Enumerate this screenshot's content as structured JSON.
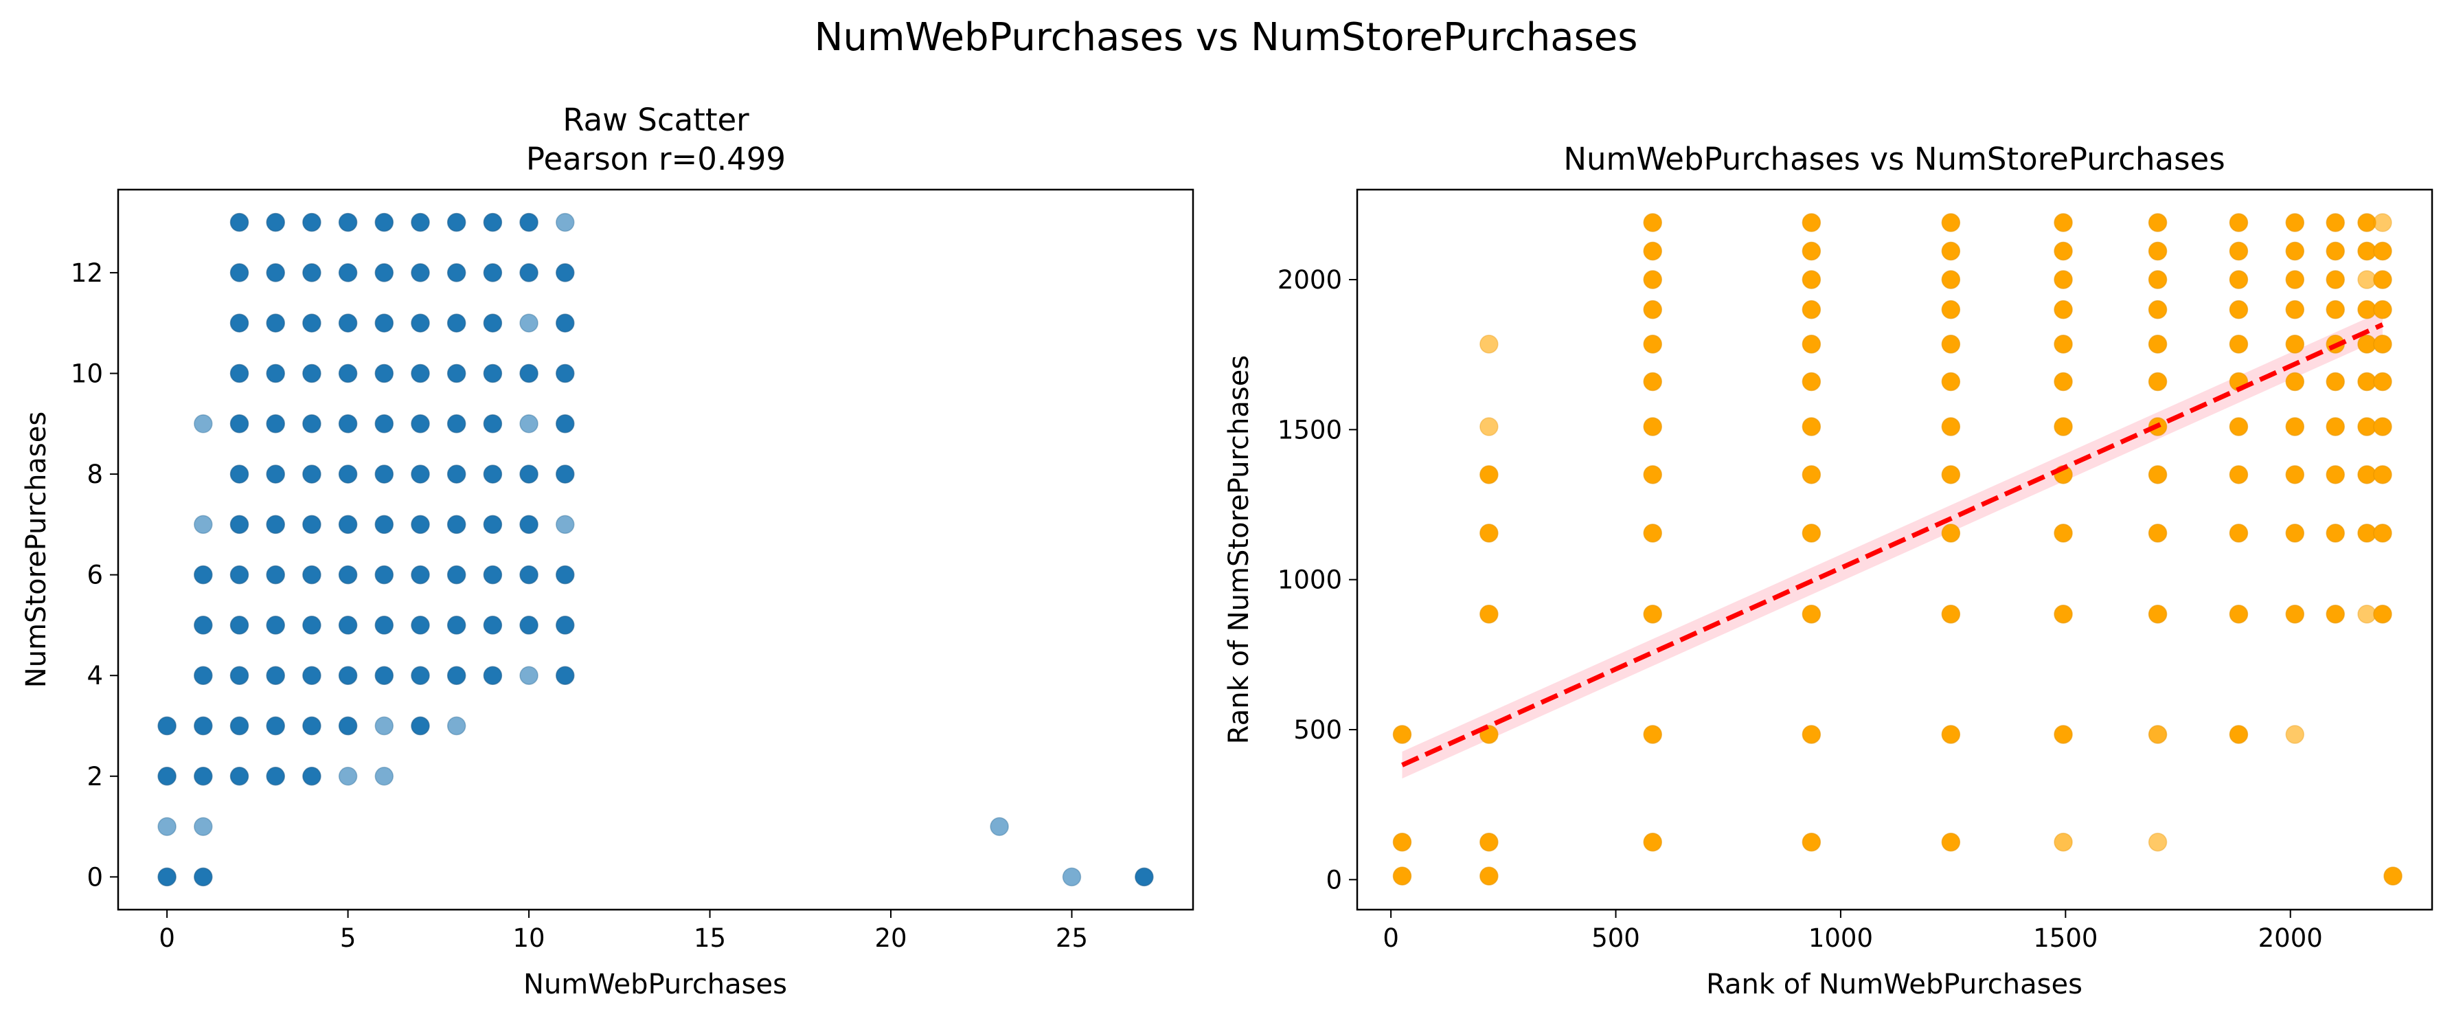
{
  "figure": {
    "suptitle": "NumWebPurchases vs NumStorePurchases"
  },
  "chart_data": [
    {
      "type": "scatter",
      "title": "Raw Scatter",
      "subtitle": "Pearson r=0.499",
      "xlabel": "NumWebPurchases",
      "ylabel": "NumStorePurchases",
      "xlim": [
        -1.35,
        28.35
      ],
      "ylim": [
        -0.65,
        13.65
      ],
      "xticks": [
        0,
        5,
        10,
        15,
        20,
        25
      ],
      "yticks": [
        0,
        2,
        4,
        6,
        8,
        10,
        12
      ],
      "grid": false,
      "marker_color": "#1f77b4",
      "points": [
        {
          "x": 0,
          "y": 0
        },
        {
          "x": 0,
          "y": 1,
          "alpha": 0.6
        },
        {
          "x": 0,
          "y": 2
        },
        {
          "x": 0,
          "y": 3
        },
        {
          "x": 1,
          "y": 0
        },
        {
          "x": 1,
          "y": 1,
          "alpha": 0.6
        },
        {
          "x": 1,
          "y": 2
        },
        {
          "x": 1,
          "y": 3
        },
        {
          "x": 1,
          "y": 4
        },
        {
          "x": 1,
          "y": 5
        },
        {
          "x": 1,
          "y": 6
        },
        {
          "x": 1,
          "y": 7,
          "alpha": 0.6
        },
        {
          "x": 1,
          "y": 9,
          "alpha": 0.6
        },
        {
          "x": 2,
          "y": 2
        },
        {
          "x": 2,
          "y": 3
        },
        {
          "x": 2,
          "y": 4
        },
        {
          "x": 2,
          "y": 5
        },
        {
          "x": 2,
          "y": 6
        },
        {
          "x": 2,
          "y": 7
        },
        {
          "x": 2,
          "y": 8
        },
        {
          "x": 2,
          "y": 9
        },
        {
          "x": 2,
          "y": 10
        },
        {
          "x": 2,
          "y": 11
        },
        {
          "x": 2,
          "y": 12
        },
        {
          "x": 2,
          "y": 13
        },
        {
          "x": 3,
          "y": 2
        },
        {
          "x": 3,
          "y": 3
        },
        {
          "x": 3,
          "y": 4
        },
        {
          "x": 3,
          "y": 5
        },
        {
          "x": 3,
          "y": 6
        },
        {
          "x": 3,
          "y": 7
        },
        {
          "x": 3,
          "y": 8
        },
        {
          "x": 3,
          "y": 9
        },
        {
          "x": 3,
          "y": 10
        },
        {
          "x": 3,
          "y": 11
        },
        {
          "x": 3,
          "y": 12
        },
        {
          "x": 3,
          "y": 13
        },
        {
          "x": 4,
          "y": 2
        },
        {
          "x": 4,
          "y": 3
        },
        {
          "x": 4,
          "y": 4
        },
        {
          "x": 4,
          "y": 5
        },
        {
          "x": 4,
          "y": 6
        },
        {
          "x": 4,
          "y": 7
        },
        {
          "x": 4,
          "y": 8
        },
        {
          "x": 4,
          "y": 9
        },
        {
          "x": 4,
          "y": 10
        },
        {
          "x": 4,
          "y": 11
        },
        {
          "x": 4,
          "y": 12
        },
        {
          "x": 4,
          "y": 13
        },
        {
          "x": 5,
          "y": 2,
          "alpha": 0.6
        },
        {
          "x": 5,
          "y": 3
        },
        {
          "x": 5,
          "y": 4
        },
        {
          "x": 5,
          "y": 5
        },
        {
          "x": 5,
          "y": 6
        },
        {
          "x": 5,
          "y": 7
        },
        {
          "x": 5,
          "y": 8
        },
        {
          "x": 5,
          "y": 9
        },
        {
          "x": 5,
          "y": 10
        },
        {
          "x": 5,
          "y": 11
        },
        {
          "x": 5,
          "y": 12
        },
        {
          "x": 5,
          "y": 13
        },
        {
          "x": 6,
          "y": 2,
          "alpha": 0.6
        },
        {
          "x": 6,
          "y": 3,
          "alpha": 0.6
        },
        {
          "x": 6,
          "y": 4
        },
        {
          "x": 6,
          "y": 5
        },
        {
          "x": 6,
          "y": 6
        },
        {
          "x": 6,
          "y": 7
        },
        {
          "x": 6,
          "y": 8
        },
        {
          "x": 6,
          "y": 9
        },
        {
          "x": 6,
          "y": 10
        },
        {
          "x": 6,
          "y": 11
        },
        {
          "x": 6,
          "y": 12
        },
        {
          "x": 6,
          "y": 13
        },
        {
          "x": 7,
          "y": 3
        },
        {
          "x": 7,
          "y": 4
        },
        {
          "x": 7,
          "y": 5
        },
        {
          "x": 7,
          "y": 6
        },
        {
          "x": 7,
          "y": 7
        },
        {
          "x": 7,
          "y": 8
        },
        {
          "x": 7,
          "y": 9
        },
        {
          "x": 7,
          "y": 10
        },
        {
          "x": 7,
          "y": 11
        },
        {
          "x": 7,
          "y": 12
        },
        {
          "x": 7,
          "y": 13
        },
        {
          "x": 8,
          "y": 3,
          "alpha": 0.6
        },
        {
          "x": 8,
          "y": 4
        },
        {
          "x": 8,
          "y": 5
        },
        {
          "x": 8,
          "y": 6
        },
        {
          "x": 8,
          "y": 7
        },
        {
          "x": 8,
          "y": 8
        },
        {
          "x": 8,
          "y": 9
        },
        {
          "x": 8,
          "y": 10
        },
        {
          "x": 8,
          "y": 11
        },
        {
          "x": 8,
          "y": 12
        },
        {
          "x": 8,
          "y": 13
        },
        {
          "x": 9,
          "y": 4
        },
        {
          "x": 9,
          "y": 5
        },
        {
          "x": 9,
          "y": 6
        },
        {
          "x": 9,
          "y": 7
        },
        {
          "x": 9,
          "y": 8
        },
        {
          "x": 9,
          "y": 9
        },
        {
          "x": 9,
          "y": 10
        },
        {
          "x": 9,
          "y": 11
        },
        {
          "x": 9,
          "y": 12
        },
        {
          "x": 9,
          "y": 13
        },
        {
          "x": 10,
          "y": 4,
          "alpha": 0.6
        },
        {
          "x": 10,
          "y": 5
        },
        {
          "x": 10,
          "y": 6
        },
        {
          "x": 10,
          "y": 7
        },
        {
          "x": 10,
          "y": 8
        },
        {
          "x": 10,
          "y": 9,
          "alpha": 0.6
        },
        {
          "x": 10,
          "y": 10
        },
        {
          "x": 10,
          "y": 11,
          "alpha": 0.6
        },
        {
          "x": 10,
          "y": 12
        },
        {
          "x": 10,
          "y": 13
        },
        {
          "x": 11,
          "y": 4
        },
        {
          "x": 11,
          "y": 5
        },
        {
          "x": 11,
          "y": 6
        },
        {
          "x": 11,
          "y": 7,
          "alpha": 0.6
        },
        {
          "x": 11,
          "y": 8
        },
        {
          "x": 11,
          "y": 9
        },
        {
          "x": 11,
          "y": 10
        },
        {
          "x": 11,
          "y": 11
        },
        {
          "x": 11,
          "y": 12
        },
        {
          "x": 11,
          "y": 13,
          "alpha": 0.6
        },
        {
          "x": 23,
          "y": 1,
          "alpha": 0.6
        },
        {
          "x": 25,
          "y": 0,
          "alpha": 0.6
        },
        {
          "x": 27,
          "y": 0
        }
      ]
    },
    {
      "type": "scatter",
      "title": "NumWebPurchases vs NumStorePurchases",
      "xlabel": "Rank of NumWebPurchases",
      "ylabel": "Rank of NumStorePurchases",
      "xlim": [
        -75,
        2315
      ],
      "ylim": [
        -100,
        2300
      ],
      "xticks": [
        0,
        500,
        1000,
        1500,
        2000
      ],
      "yticks": [
        0,
        500,
        1000,
        1500,
        2000
      ],
      "grid": false,
      "marker_color": "#ffa500",
      "x_groups": [
        25,
        218,
        582,
        935,
        1245,
        1495,
        1705,
        1885,
        2010,
        2100,
        2170,
        2205,
        2228
      ],
      "y_groups": [
        12,
        125,
        484,
        885,
        1155,
        1350,
        1510,
        1660,
        1785,
        1900,
        2000,
        2095,
        2190
      ],
      "points": [
        {
          "x": 25,
          "y": 12
        },
        {
          "x": 25,
          "y": 125
        },
        {
          "x": 25,
          "y": 484
        },
        {
          "x": 218,
          "y": 12
        },
        {
          "x": 218,
          "y": 125
        },
        {
          "x": 218,
          "y": 484
        },
        {
          "x": 218,
          "y": 885
        },
        {
          "x": 218,
          "y": 1155
        },
        {
          "x": 218,
          "y": 1350
        },
        {
          "x": 218,
          "y": 1510,
          "alpha": 0.6
        },
        {
          "x": 218,
          "y": 1785,
          "alpha": 0.6
        },
        {
          "x": 582,
          "y": 125
        },
        {
          "x": 582,
          "y": 484
        },
        {
          "x": 582,
          "y": 885
        },
        {
          "x": 582,
          "y": 1155
        },
        {
          "x": 582,
          "y": 1350
        },
        {
          "x": 582,
          "y": 1510
        },
        {
          "x": 582,
          "y": 1660
        },
        {
          "x": 582,
          "y": 1785
        },
        {
          "x": 582,
          "y": 1900
        },
        {
          "x": 582,
          "y": 2000
        },
        {
          "x": 582,
          "y": 2095
        },
        {
          "x": 582,
          "y": 2190
        },
        {
          "x": 935,
          "y": 125
        },
        {
          "x": 935,
          "y": 484
        },
        {
          "x": 935,
          "y": 885
        },
        {
          "x": 935,
          "y": 1155
        },
        {
          "x": 935,
          "y": 1350
        },
        {
          "x": 935,
          "y": 1510
        },
        {
          "x": 935,
          "y": 1660
        },
        {
          "x": 935,
          "y": 1785
        },
        {
          "x": 935,
          "y": 1900
        },
        {
          "x": 935,
          "y": 2000
        },
        {
          "x": 935,
          "y": 2095
        },
        {
          "x": 935,
          "y": 2190
        },
        {
          "x": 1245,
          "y": 125
        },
        {
          "x": 1245,
          "y": 484
        },
        {
          "x": 1245,
          "y": 885
        },
        {
          "x": 1245,
          "y": 1155
        },
        {
          "x": 1245,
          "y": 1350
        },
        {
          "x": 1245,
          "y": 1510
        },
        {
          "x": 1245,
          "y": 1660
        },
        {
          "x": 1245,
          "y": 1785
        },
        {
          "x": 1245,
          "y": 1900
        },
        {
          "x": 1245,
          "y": 2000
        },
        {
          "x": 1245,
          "y": 2095
        },
        {
          "x": 1245,
          "y": 2190
        },
        {
          "x": 1495,
          "y": 125,
          "alpha": 0.7
        },
        {
          "x": 1495,
          "y": 484
        },
        {
          "x": 1495,
          "y": 885
        },
        {
          "x": 1495,
          "y": 1155
        },
        {
          "x": 1495,
          "y": 1350
        },
        {
          "x": 1495,
          "y": 1510
        },
        {
          "x": 1495,
          "y": 1660
        },
        {
          "x": 1495,
          "y": 1785
        },
        {
          "x": 1495,
          "y": 1900
        },
        {
          "x": 1495,
          "y": 2000
        },
        {
          "x": 1495,
          "y": 2095
        },
        {
          "x": 1495,
          "y": 2190
        },
        {
          "x": 1705,
          "y": 125,
          "alpha": 0.6
        },
        {
          "x": 1705,
          "y": 484,
          "alpha": 0.85
        },
        {
          "x": 1705,
          "y": 885
        },
        {
          "x": 1705,
          "y": 1155
        },
        {
          "x": 1705,
          "y": 1350
        },
        {
          "x": 1705,
          "y": 1510
        },
        {
          "x": 1705,
          "y": 1660
        },
        {
          "x": 1705,
          "y": 1785
        },
        {
          "x": 1705,
          "y": 1900
        },
        {
          "x": 1705,
          "y": 2000
        },
        {
          "x": 1705,
          "y": 2095
        },
        {
          "x": 1705,
          "y": 2190
        },
        {
          "x": 1885,
          "y": 484
        },
        {
          "x": 1885,
          "y": 885
        },
        {
          "x": 1885,
          "y": 1155
        },
        {
          "x": 1885,
          "y": 1350
        },
        {
          "x": 1885,
          "y": 1510
        },
        {
          "x": 1885,
          "y": 1660
        },
        {
          "x": 1885,
          "y": 1785
        },
        {
          "x": 1885,
          "y": 1900
        },
        {
          "x": 1885,
          "y": 2000
        },
        {
          "x": 1885,
          "y": 2095
        },
        {
          "x": 1885,
          "y": 2190
        },
        {
          "x": 2010,
          "y": 484,
          "alpha": 0.6
        },
        {
          "x": 2010,
          "y": 885
        },
        {
          "x": 2010,
          "y": 1155
        },
        {
          "x": 2010,
          "y": 1350
        },
        {
          "x": 2010,
          "y": 1510
        },
        {
          "x": 2010,
          "y": 1660
        },
        {
          "x": 2010,
          "y": 1785
        },
        {
          "x": 2010,
          "y": 1900
        },
        {
          "x": 2010,
          "y": 2000
        },
        {
          "x": 2010,
          "y": 2095
        },
        {
          "x": 2010,
          "y": 2190
        },
        {
          "x": 2100,
          "y": 885
        },
        {
          "x": 2100,
          "y": 1155
        },
        {
          "x": 2100,
          "y": 1350
        },
        {
          "x": 2100,
          "y": 1510
        },
        {
          "x": 2100,
          "y": 1660
        },
        {
          "x": 2100,
          "y": 1785
        },
        {
          "x": 2100,
          "y": 1900
        },
        {
          "x": 2100,
          "y": 2000
        },
        {
          "x": 2100,
          "y": 2095
        },
        {
          "x": 2100,
          "y": 2190
        },
        {
          "x": 2170,
          "y": 885,
          "alpha": 0.6
        },
        {
          "x": 2170,
          "y": 1155
        },
        {
          "x": 2170,
          "y": 1350
        },
        {
          "x": 2170,
          "y": 1510
        },
        {
          "x": 2170,
          "y": 1660
        },
        {
          "x": 2170,
          "y": 1785
        },
        {
          "x": 2170,
          "y": 1900
        },
        {
          "x": 2170,
          "y": 2000,
          "alpha": 0.6
        },
        {
          "x": 2170,
          "y": 2095
        },
        {
          "x": 2170,
          "y": 2190
        },
        {
          "x": 2205,
          "y": 885
        },
        {
          "x": 2205,
          "y": 1155
        },
        {
          "x": 2205,
          "y": 1350
        },
        {
          "x": 2205,
          "y": 1510
        },
        {
          "x": 2205,
          "y": 1660
        },
        {
          "x": 2205,
          "y": 1785
        },
        {
          "x": 2205,
          "y": 1900
        },
        {
          "x": 2205,
          "y": 2000
        },
        {
          "x": 2205,
          "y": 2095
        },
        {
          "x": 2205,
          "y": 2190,
          "alpha": 0.6
        },
        {
          "x": 2228,
          "y": 12
        }
      ],
      "regression": {
        "style": "dashed",
        "color": "#ff0000",
        "ci_color": "#ffc0cb",
        "x": [
          25,
          2205
        ],
        "y": [
          382,
          1850
        ],
        "ci_halfwidth": 28
      }
    }
  ]
}
